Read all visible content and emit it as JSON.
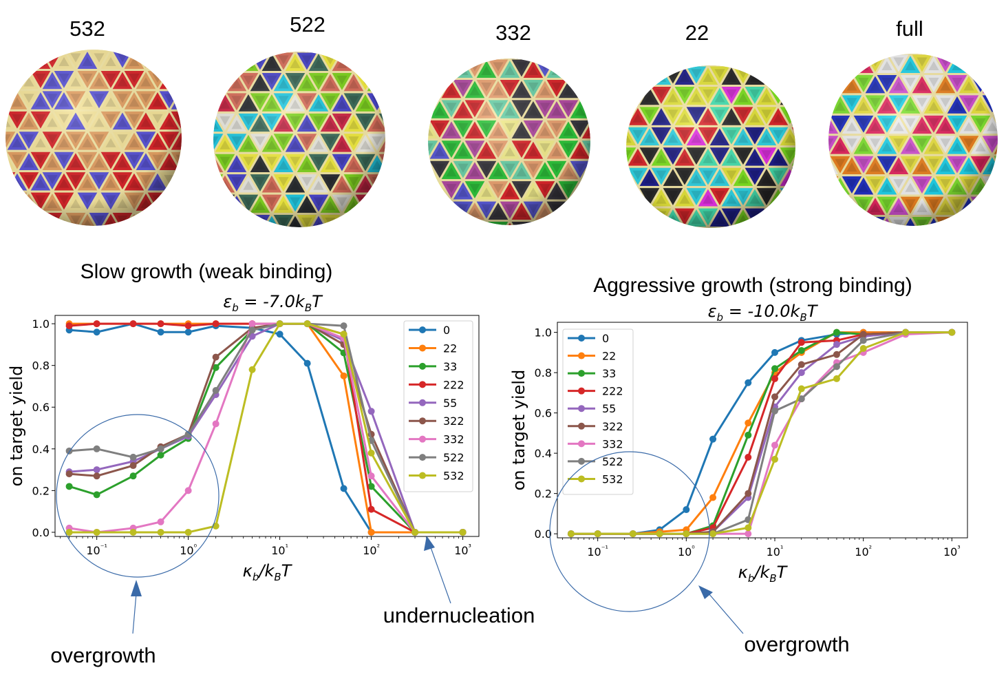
{
  "spheres": [
    {
      "label": "532",
      "palette": [
        "#d8262b",
        "#5b55d6",
        "#e3a063",
        "#f4e39a"
      ]
    },
    {
      "label": "522",
      "palette": [
        "#7fd320",
        "#20c7e0",
        "#cf2747",
        "#2c2f33",
        "#e9e8e0",
        "#d86e5b",
        "#4a46c9",
        "#f0ea40",
        "#3d6d5b"
      ]
    },
    {
      "label": "332",
      "palette": [
        "#2dc23a",
        "#d8262b",
        "#e8a070",
        "#3b3940",
        "#5858d2",
        "#f2ec8c",
        "#b04aa0",
        "#6ad0a8"
      ]
    },
    {
      "label": "22",
      "palette": [
        "#e02fe0",
        "#2fd0e0",
        "#7de020",
        "#1f1f8a",
        "#e2e23a",
        "#d8262b",
        "#44e0b0",
        "#2a2a2a"
      ]
    },
    {
      "label": "full",
      "palette": [
        "#1fd0e8",
        "#e2265f",
        "#7ee030",
        "#e8e040",
        "#2030c0",
        "#e88020",
        "#d050d0",
        "#eeeeee"
      ]
    }
  ],
  "panels": [
    {
      "title": "Slow growth (weak binding)",
      "subtitle": "εb = -7.0kBT"
    },
    {
      "title": "Aggressive growth (strong binding)",
      "subtitle": "εb = -10.0kBT"
    }
  ],
  "annotations": {
    "left_overgrowth": "overgrowth",
    "undernucleation": "undernucleation",
    "right_overgrowth": "overgrowth"
  },
  "annotation_color": "#3a6aa8",
  "chart_data": [
    {
      "type": "line",
      "title": "Slow growth (weak binding)",
      "subtitle": "εb = -7.0kBT",
      "xlabel": "κb/kBT",
      "ylabel": "on target yield",
      "xscale": "log",
      "xlim": [
        0.035,
        1500
      ],
      "ylim": [
        -0.02,
        1.04
      ],
      "xticks": [
        0.1,
        1,
        10,
        100,
        1000
      ],
      "xtick_labels": [
        "10⁻¹",
        "10⁰",
        "10¹",
        "10²",
        "10³"
      ],
      "yticks": [
        0.0,
        0.2,
        0.4,
        0.6,
        0.8,
        1.0
      ],
      "ytick_labels": [
        "0.0",
        "0.2",
        "0.4",
        "0.6",
        "0.8",
        "1.0"
      ],
      "grid": false,
      "legend_position": "top-right",
      "x": [
        0.05,
        0.1,
        0.25,
        0.5,
        1,
        2,
        5,
        10,
        20,
        50,
        100,
        300,
        1000
      ],
      "series": [
        {
          "name": "0",
          "color": "#1f77b4",
          "values": [
            0.97,
            0.96,
            1.0,
            0.96,
            0.96,
            0.99,
            0.98,
            0.95,
            0.81,
            0.21,
            0.0,
            0.0,
            0.0
          ]
        },
        {
          "name": "22",
          "color": "#ff7f0e",
          "values": [
            1.0,
            1.0,
            1.0,
            1.0,
            1.0,
            1.0,
            1.0,
            1.0,
            1.0,
            0.75,
            0.0,
            0.0,
            0.0
          ]
        },
        {
          "name": "33",
          "color": "#2ca02c",
          "values": [
            0.22,
            0.18,
            0.27,
            0.37,
            0.45,
            0.79,
            0.97,
            1.0,
            1.0,
            0.86,
            0.22,
            0.0,
            0.0
          ]
        },
        {
          "name": "222",
          "color": "#d62728",
          "values": [
            0.99,
            1.0,
            1.0,
            1.0,
            0.99,
            1.0,
            1.0,
            1.0,
            1.0,
            0.95,
            0.11,
            0.0,
            0.0
          ]
        },
        {
          "name": "55",
          "color": "#9467bd",
          "values": [
            0.29,
            0.3,
            0.34,
            0.4,
            0.46,
            0.66,
            0.94,
            1.0,
            1.0,
            0.92,
            0.58,
            0.0,
            0.0
          ]
        },
        {
          "name": "322",
          "color": "#8c564b",
          "values": [
            0.28,
            0.27,
            0.32,
            0.41,
            0.47,
            0.84,
            0.98,
            1.0,
            1.0,
            0.9,
            0.47,
            0.0,
            0.0
          ]
        },
        {
          "name": "332",
          "color": "#e377c2",
          "values": [
            0.02,
            0.0,
            0.02,
            0.05,
            0.2,
            0.52,
            1.0,
            1.0,
            1.0,
            0.93,
            0.27,
            0.0,
            0.0
          ]
        },
        {
          "name": "522",
          "color": "#7f7f7f",
          "values": [
            0.39,
            0.4,
            0.36,
            0.4,
            0.47,
            0.68,
            0.97,
            1.0,
            1.0,
            0.99,
            0.44,
            0.0,
            0.0
          ]
        },
        {
          "name": "532",
          "color": "#bcbd22",
          "values": [
            0.0,
            0.0,
            0.0,
            0.0,
            0.0,
            0.03,
            0.78,
            1.0,
            1.0,
            0.95,
            0.38,
            0.0,
            0.0
          ]
        }
      ]
    },
    {
      "type": "line",
      "title": "Aggressive growth (strong binding)",
      "subtitle": "εb = -10.0kBT",
      "xlabel": "κb/kBT",
      "ylabel": "on target yield",
      "xscale": "log",
      "xlim": [
        0.035,
        1500
      ],
      "ylim": [
        -0.02,
        1.05
      ],
      "xticks": [
        0.1,
        1,
        10,
        100,
        1000
      ],
      "xtick_labels": [
        "10⁻¹",
        "10⁰",
        "10¹",
        "10²",
        "10³"
      ],
      "yticks": [
        0.0,
        0.2,
        0.4,
        0.6,
        0.8,
        1.0
      ],
      "ytick_labels": [
        "0.0",
        "0.2",
        "0.4",
        "0.6",
        "0.8",
        "1.0"
      ],
      "grid": false,
      "legend_position": "top-left",
      "x": [
        0.05,
        0.1,
        0.25,
        0.5,
        1,
        2,
        5,
        10,
        20,
        50,
        100,
        300,
        1000
      ],
      "series": [
        {
          "name": "0",
          "color": "#1f77b4",
          "values": [
            0.0,
            0.0,
            0.0,
            0.02,
            0.12,
            0.47,
            0.75,
            0.9,
            0.96,
            0.99,
            1.0,
            1.0,
            1.0
          ]
        },
        {
          "name": "22",
          "color": "#ff7f0e",
          "values": [
            0.0,
            0.0,
            0.0,
            0.01,
            0.02,
            0.18,
            0.55,
            0.8,
            0.9,
            1.0,
            1.0,
            1.0,
            1.0
          ]
        },
        {
          "name": "33",
          "color": "#2ca02c",
          "values": [
            0.0,
            0.0,
            0.0,
            0.0,
            0.0,
            0.04,
            0.49,
            0.82,
            0.91,
            1.0,
            0.99,
            1.0,
            1.0
          ]
        },
        {
          "name": "222",
          "color": "#d62728",
          "values": [
            0.0,
            0.0,
            0.0,
            0.0,
            0.0,
            0.03,
            0.38,
            0.77,
            0.95,
            0.96,
            0.99,
            1.0,
            1.0
          ]
        },
        {
          "name": "55",
          "color": "#9467bd",
          "values": [
            0.0,
            0.0,
            0.0,
            0.0,
            0.0,
            0.01,
            0.18,
            0.63,
            0.8,
            0.94,
            0.98,
            1.0,
            1.0
          ]
        },
        {
          "name": "322",
          "color": "#8c564b",
          "values": [
            0.0,
            0.0,
            0.0,
            0.0,
            0.0,
            0.01,
            0.2,
            0.68,
            0.84,
            0.89,
            0.99,
            1.0,
            1.0
          ]
        },
        {
          "name": "332",
          "color": "#e377c2",
          "values": [
            0.0,
            0.0,
            0.0,
            0.0,
            0.0,
            0.0,
            0.0,
            0.44,
            0.67,
            0.85,
            0.9,
            0.99,
            1.0
          ]
        },
        {
          "name": "522",
          "color": "#7f7f7f",
          "values": [
            0.0,
            0.0,
            0.0,
            0.0,
            0.0,
            0.0,
            0.07,
            0.61,
            0.67,
            0.83,
            0.96,
            1.0,
            1.0
          ]
        },
        {
          "name": "532",
          "color": "#bcbd22",
          "values": [
            0.0,
            0.0,
            0.0,
            0.0,
            0.0,
            0.0,
            0.03,
            0.37,
            0.72,
            0.77,
            0.92,
            1.0,
            1.0
          ]
        }
      ]
    }
  ]
}
